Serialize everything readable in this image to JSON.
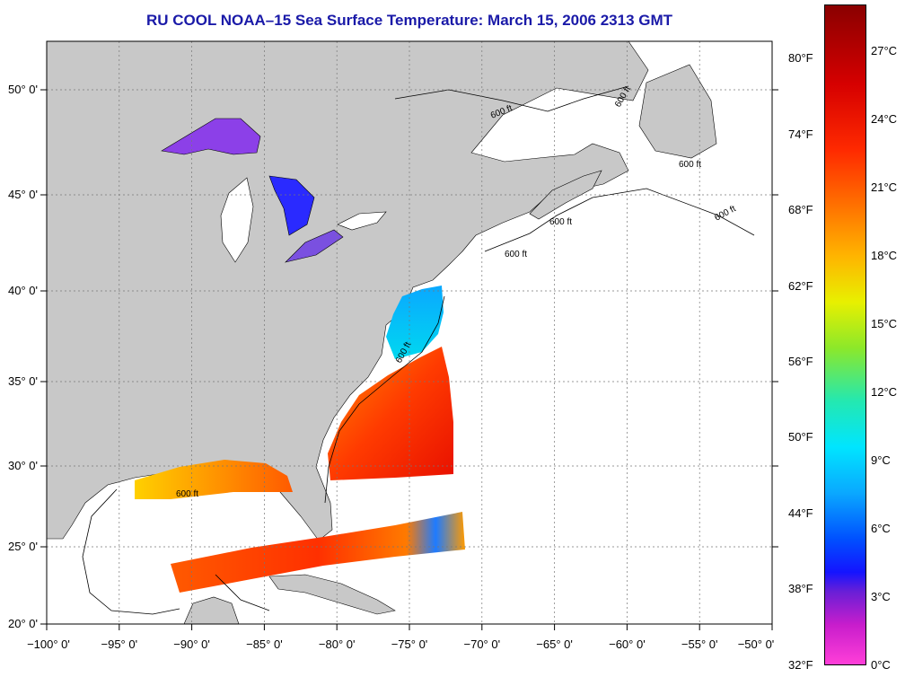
{
  "title": "RU COOL  NOAA–15  Sea Surface Temperature:  March 15, 2006 2313 GMT",
  "map": {
    "lon_range": [
      -100,
      -50
    ],
    "lat_range": [
      20,
      52.5
    ],
    "lon_ticks": [
      "−100° 0'",
      "−95° 0'",
      "−90° 0'",
      "−85° 0'",
      "−80° 0'",
      "−75° 0'",
      "−70° 0'",
      "−65° 0'",
      "−60° 0'",
      "−55° 0'",
      "−50° 0'"
    ],
    "lat_ticks": [
      "20° 0'",
      "25° 0'",
      "30° 0'",
      "35° 0'",
      "40° 0'",
      "45° 0'",
      "50° 0'"
    ],
    "contour_label": "600 ft",
    "colors": {
      "land": "#c8c8c8",
      "ocean": "#ffffff",
      "grid": "#888888"
    }
  },
  "colorbar": {
    "fahrenheit": [
      "80°F",
      "74°F",
      "68°F",
      "62°F",
      "56°F",
      "50°F",
      "44°F",
      "38°F",
      "32°F"
    ],
    "celsius": [
      "27°C",
      "24°C",
      "21°C",
      "18°C",
      "15°C",
      "12°C",
      "9°C",
      "6°C",
      "3°C",
      "0°C"
    ],
    "colors": [
      "#ff3fd8",
      "#6a1fd6",
      "#1414ff",
      "#0aa8ff",
      "#00e5ff",
      "#8ce82a",
      "#e8f000",
      "#ffb400",
      "#ff6e00",
      "#ff2a00",
      "#8a0000"
    ]
  }
}
